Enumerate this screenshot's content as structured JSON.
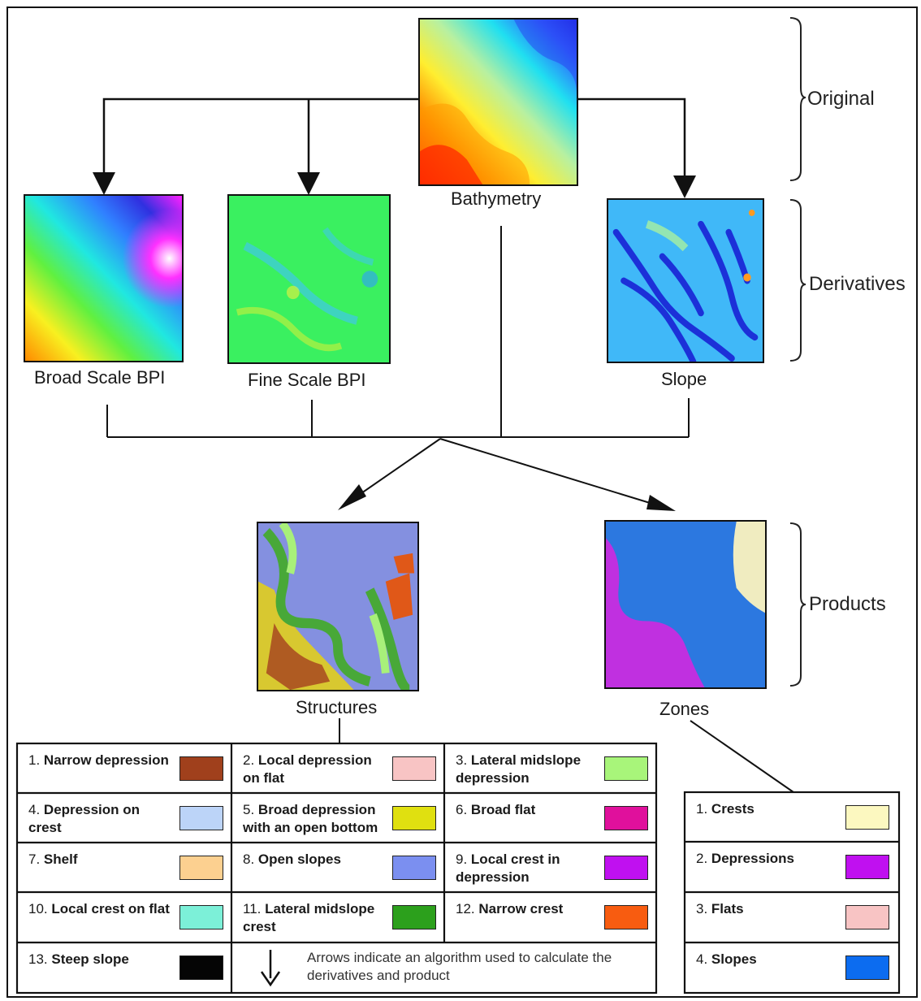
{
  "diagram": {
    "brackets": {
      "original": "Original",
      "derivatives": "Derivatives",
      "products": "Products"
    },
    "images": {
      "bathymetry": "Bathymetry",
      "broad_bpi": "Broad Scale BPI",
      "fine_bpi": "Fine Scale BPI",
      "slope": "Slope",
      "structures": "Structures",
      "zones": "Zones"
    },
    "arrow_note": "Arrows indicate an algorithm used to calculate the derivatives and product"
  },
  "structures_legend": [
    {
      "num": "1.",
      "label": "Narrow depression",
      "color": "#a0401c"
    },
    {
      "num": "2.",
      "label": "Local depression on flat",
      "color": "#f8c4c4"
    },
    {
      "num": "3.",
      "label": "Lateral midslope depression",
      "color": "#a8f57a"
    },
    {
      "num": "4.",
      "label": "Depression on crest",
      "color": "#bcd4f8"
    },
    {
      "num": "5.",
      "label": "Broad depression with an open bottom",
      "color": "#e0e010"
    },
    {
      "num": "6.",
      "label": "Broad flat",
      "color": "#e0109c"
    },
    {
      "num": "7.",
      "label": "Shelf",
      "color": "#fcd090"
    },
    {
      "num": "8.",
      "label": "Open slopes",
      "color": "#7b8ff0"
    },
    {
      "num": "9.",
      "label": "Local crest in depression",
      "color": "#c010f0"
    },
    {
      "num": "10.",
      "label": "Local crest on flat",
      "color": "#7cf0d8"
    },
    {
      "num": "11.",
      "label": "Lateral midslope crest",
      "color": "#2ca01c"
    },
    {
      "num": "12.",
      "label": "Narrow crest",
      "color": "#f85c10"
    },
    {
      "num": "13.",
      "label": "Steep slope",
      "color": "#050505"
    }
  ],
  "zones_legend": [
    {
      "num": "1.",
      "label": "Crests",
      "color": "#fcf8c0"
    },
    {
      "num": "2.",
      "label": "Depressions",
      "color": "#c010f0"
    },
    {
      "num": "3.",
      "label": "Flats",
      "color": "#f8c4c4"
    },
    {
      "num": "4.",
      "label": "Slopes",
      "color": "#0c6cf0"
    }
  ]
}
